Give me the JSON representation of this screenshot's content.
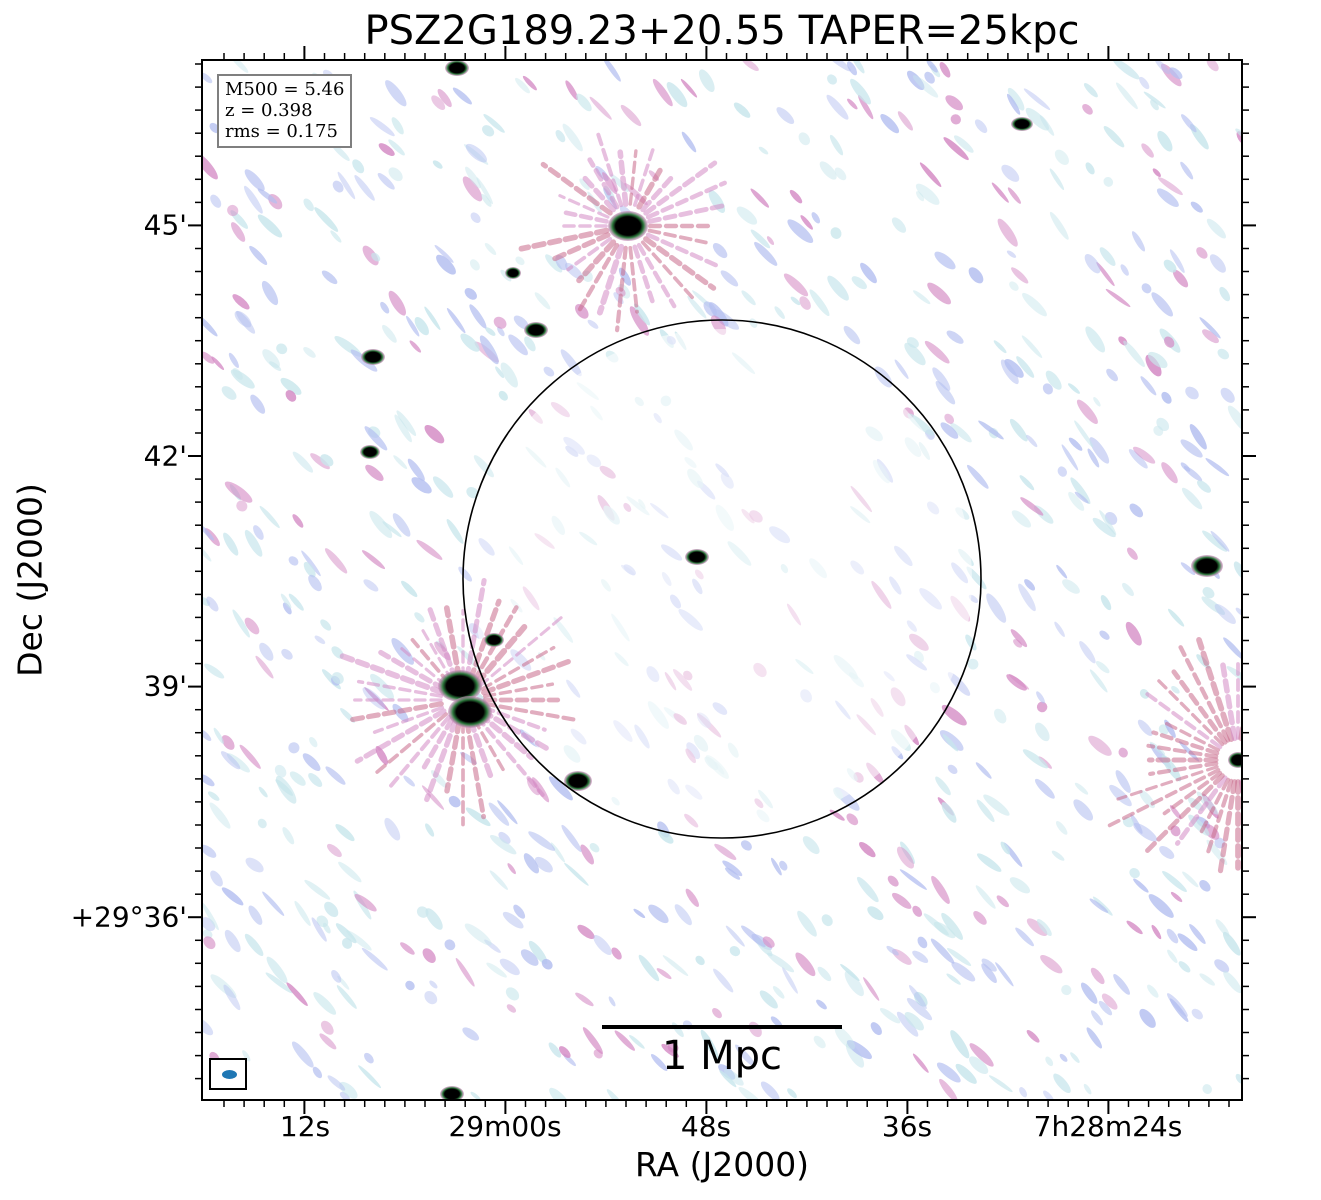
{
  "title": "PSZ2G189.23+20.55 TAPER=25kpc",
  "axes": {
    "xlabel": "RA (J2000)",
    "ylabel": "Dec (J2000)",
    "xticks": [
      "12s",
      "29m00s",
      "48s",
      "36s",
      "7h28m24s"
    ],
    "yticks": [
      "45'",
      "42'",
      "39'",
      "+29°36'"
    ]
  },
  "info": {
    "m500": "M500 = 5.46",
    "z": "z = 0.398",
    "rms": "rms = 0.175"
  },
  "scalebar": {
    "label": "1 Mpc"
  },
  "colors": {
    "background": "#ffffff",
    "faint_noise": "#c8e6ec",
    "low_noise": "#b4bff0",
    "mid_emission": "#d48ac4",
    "high_emission": "#c86a8a",
    "source_core": "#000000",
    "source_halo": "#2c7a3c",
    "circle": "#000000",
    "beam": "#1f77b4"
  }
}
